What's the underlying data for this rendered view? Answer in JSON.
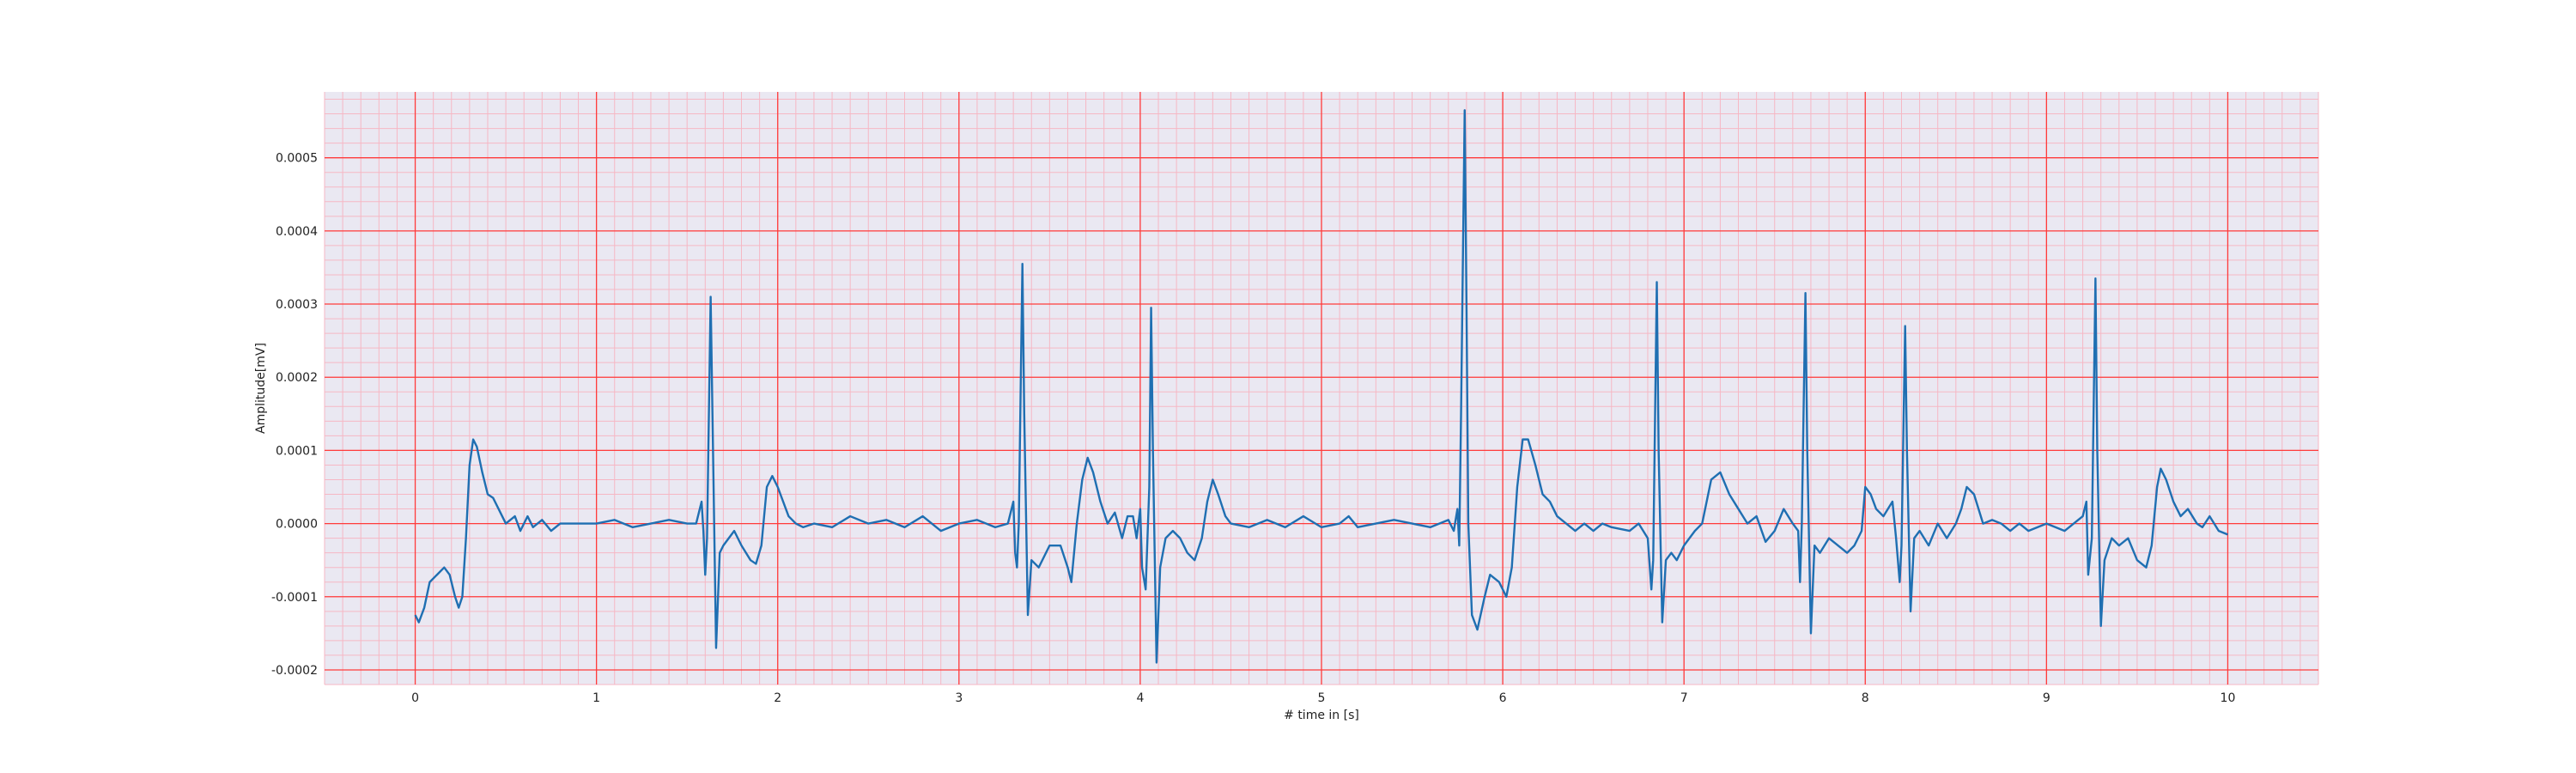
{
  "chart_data": {
    "type": "line",
    "title": "",
    "xlabel": "# time in [s]",
    "ylabel": "Amplitude[mV]",
    "xlim": [
      -0.5,
      10.5
    ],
    "ylim": [
      -0.00022,
      0.00059
    ],
    "x_ticks": [
      0,
      1,
      2,
      3,
      4,
      5,
      6,
      7,
      8,
      9,
      10
    ],
    "x_tick_labels": [
      "0",
      "1",
      "2",
      "3",
      "4",
      "5",
      "6",
      "7",
      "8",
      "9",
      "10"
    ],
    "y_ticks": [
      -0.0002,
      -0.0001,
      0.0,
      0.0001,
      0.0002,
      0.0003,
      0.0004,
      0.0005
    ],
    "y_tick_labels": [
      "-0.0002",
      "-0.0001",
      "0.0000",
      "0.0001",
      "0.0002",
      "0.0003",
      "0.0004",
      "0.0005"
    ],
    "grid": {
      "major": true,
      "minor": true,
      "major_x_step": 1,
      "major_y_step": 0.0001,
      "minor_x_step": 0.1,
      "minor_y_step": 2e-05,
      "major_color": "#ff3b3b",
      "minor_color": "#f6b7c4"
    },
    "colors": {
      "plot_background": "#eae8f2",
      "line": "#1f6fb2",
      "text": "#222222"
    },
    "series": [
      {
        "points": [
          [
            0.0,
            -0.000125
          ],
          [
            0.02,
            -0.000135
          ],
          [
            0.05,
            -0.000115
          ],
          [
            0.08,
            -8e-05
          ],
          [
            0.12,
            -7e-05
          ],
          [
            0.16,
            -6e-05
          ],
          [
            0.19,
            -7e-05
          ],
          [
            0.22,
            -0.0001
          ],
          [
            0.24,
            -0.000115
          ],
          [
            0.26,
            -0.0001
          ],
          [
            0.28,
            -2e-05
          ],
          [
            0.3,
            8e-05
          ],
          [
            0.32,
            0.000115
          ],
          [
            0.34,
            0.000105
          ],
          [
            0.37,
            7e-05
          ],
          [
            0.4,
            4e-05
          ],
          [
            0.43,
            3.5e-05
          ],
          [
            0.46,
            2e-05
          ],
          [
            0.5,
            0.0
          ],
          [
            0.55,
            1e-05
          ],
          [
            0.58,
            -1e-05
          ],
          [
            0.62,
            1e-05
          ],
          [
            0.65,
            -5e-06
          ],
          [
            0.7,
            5e-06
          ],
          [
            0.75,
            -1e-05
          ],
          [
            0.8,
            0.0
          ],
          [
            0.9,
            0.0
          ],
          [
            1.0,
            0.0
          ],
          [
            1.1,
            5e-06
          ],
          [
            1.2,
            -5e-06
          ],
          [
            1.3,
            0.0
          ],
          [
            1.4,
            5e-06
          ],
          [
            1.5,
            0.0
          ],
          [
            1.55,
            0.0
          ],
          [
            1.58,
            3e-05
          ],
          [
            1.59,
            -1e-05
          ],
          [
            1.6,
            -7e-05
          ],
          [
            1.61,
            -2e-05
          ],
          [
            1.63,
            0.00031
          ],
          [
            1.64,
            0.00015
          ],
          [
            1.66,
            -0.00017
          ],
          [
            1.68,
            -4e-05
          ],
          [
            1.7,
            -3e-05
          ],
          [
            1.73,
            -2e-05
          ],
          [
            1.76,
            -1e-05
          ],
          [
            1.8,
            -3e-05
          ],
          [
            1.85,
            -5e-05
          ],
          [
            1.88,
            -5.5e-05
          ],
          [
            1.91,
            -3e-05
          ],
          [
            1.94,
            5e-05
          ],
          [
            1.97,
            6.5e-05
          ],
          [
            2.0,
            5e-05
          ],
          [
            2.03,
            3e-05
          ],
          [
            2.06,
            1e-05
          ],
          [
            2.1,
            0.0
          ],
          [
            2.14,
            -5e-06
          ],
          [
            2.2,
            0.0
          ],
          [
            2.3,
            -5e-06
          ],
          [
            2.4,
            1e-05
          ],
          [
            2.5,
            0.0
          ],
          [
            2.6,
            5e-06
          ],
          [
            2.7,
            -5e-06
          ],
          [
            2.8,
            1e-05
          ],
          [
            2.9,
            -1e-05
          ],
          [
            3.0,
            0.0
          ],
          [
            3.1,
            5e-06
          ],
          [
            3.2,
            -5e-06
          ],
          [
            3.27,
            0.0
          ],
          [
            3.3,
            3e-05
          ],
          [
            3.31,
            -4e-05
          ],
          [
            3.32,
            -6e-05
          ],
          [
            3.33,
            0.0
          ],
          [
            3.35,
            0.000355
          ],
          [
            3.36,
            0.00015
          ],
          [
            3.38,
            -0.000125
          ],
          [
            3.4,
            -5e-05
          ],
          [
            3.44,
            -6e-05
          ],
          [
            3.5,
            -3e-05
          ],
          [
            3.56,
            -3e-05
          ],
          [
            3.6,
            -6e-05
          ],
          [
            3.62,
            -8e-05
          ],
          [
            3.65,
            0.0
          ],
          [
            3.68,
            6e-05
          ],
          [
            3.71,
            9e-05
          ],
          [
            3.74,
            7e-05
          ],
          [
            3.78,
            3e-05
          ],
          [
            3.82,
            0.0
          ],
          [
            3.86,
            1.5e-05
          ],
          [
            3.9,
            -2e-05
          ],
          [
            3.93,
            1e-05
          ],
          [
            3.96,
            1e-05
          ],
          [
            3.98,
            -2e-05
          ],
          [
            4.0,
            2e-05
          ],
          [
            4.01,
            -6e-05
          ],
          [
            4.03,
            -9e-05
          ],
          [
            4.05,
            5e-05
          ],
          [
            4.06,
            0.000295
          ],
          [
            4.07,
            0.0001
          ],
          [
            4.09,
            -0.00019
          ],
          [
            4.11,
            -6e-05
          ],
          [
            4.14,
            -2e-05
          ],
          [
            4.18,
            -1e-05
          ],
          [
            4.22,
            -2e-05
          ],
          [
            4.26,
            -4e-05
          ],
          [
            4.3,
            -5e-05
          ],
          [
            4.34,
            -2e-05
          ],
          [
            4.37,
            3e-05
          ],
          [
            4.4,
            6e-05
          ],
          [
            4.43,
            4e-05
          ],
          [
            4.47,
            1e-05
          ],
          [
            4.5,
            0.0
          ],
          [
            4.6,
            -5e-06
          ],
          [
            4.7,
            5e-06
          ],
          [
            4.8,
            -5e-06
          ],
          [
            4.9,
            1e-05
          ],
          [
            5.0,
            -5e-06
          ],
          [
            5.1,
            0.0
          ],
          [
            5.15,
            1e-05
          ],
          [
            5.2,
            -5e-06
          ],
          [
            5.3,
            0.0
          ],
          [
            5.4,
            5e-06
          ],
          [
            5.5,
            0.0
          ],
          [
            5.6,
            -5e-06
          ],
          [
            5.7,
            5e-06
          ],
          [
            5.73,
            -1e-05
          ],
          [
            5.75,
            2e-05
          ],
          [
            5.76,
            -3e-05
          ],
          [
            5.77,
            0.00015
          ],
          [
            5.79,
            0.000565
          ],
          [
            5.8,
            0.0003
          ],
          [
            5.81,
            0.0
          ],
          [
            5.83,
            -0.000125
          ],
          [
            5.86,
            -0.000145
          ],
          [
            5.9,
            -0.0001
          ],
          [
            5.93,
            -7e-05
          ],
          [
            5.98,
            -8e-05
          ],
          [
            6.02,
            -0.0001
          ],
          [
            6.05,
            -6e-05
          ],
          [
            6.08,
            5e-05
          ],
          [
            6.11,
            0.000115
          ],
          [
            6.14,
            0.000115
          ],
          [
            6.18,
            8e-05
          ],
          [
            6.22,
            4e-05
          ],
          [
            6.26,
            3e-05
          ],
          [
            6.3,
            1e-05
          ],
          [
            6.35,
            0.0
          ],
          [
            6.4,
            -1e-05
          ],
          [
            6.45,
            0.0
          ],
          [
            6.5,
            -1e-05
          ],
          [
            6.55,
            0.0
          ],
          [
            6.6,
            -5e-06
          ],
          [
            6.7,
            -1e-05
          ],
          [
            6.75,
            0.0
          ],
          [
            6.8,
            -2e-05
          ],
          [
            6.82,
            -9e-05
          ],
          [
            6.83,
            -5e-05
          ],
          [
            6.85,
            0.00033
          ],
          [
            6.86,
            0.0001
          ],
          [
            6.88,
            -0.000135
          ],
          [
            6.9,
            -5e-05
          ],
          [
            6.93,
            -4e-05
          ],
          [
            6.96,
            -5e-05
          ],
          [
            7.0,
            -3e-05
          ],
          [
            7.03,
            -2e-05
          ],
          [
            7.06,
            -1e-05
          ],
          [
            7.1,
            0.0
          ],
          [
            7.15,
            6e-05
          ],
          [
            7.2,
            7e-05
          ],
          [
            7.25,
            4e-05
          ],
          [
            7.3,
            2e-05
          ],
          [
            7.35,
            0.0
          ],
          [
            7.4,
            1e-05
          ],
          [
            7.45,
            -2.5e-05
          ],
          [
            7.5,
            -1e-05
          ],
          [
            7.55,
            2e-05
          ],
          [
            7.6,
            0.0
          ],
          [
            7.63,
            -1e-05
          ],
          [
            7.64,
            -8e-05
          ],
          [
            7.65,
            0.0
          ],
          [
            7.67,
            0.000315
          ],
          [
            7.68,
            0.0001
          ],
          [
            7.7,
            -0.00015
          ],
          [
            7.72,
            -3e-05
          ],
          [
            7.75,
            -4e-05
          ],
          [
            7.8,
            -2e-05
          ],
          [
            7.85,
            -3e-05
          ],
          [
            7.9,
            -4e-05
          ],
          [
            7.94,
            -3e-05
          ],
          [
            7.98,
            -1e-05
          ],
          [
            8.0,
            5e-05
          ],
          [
            8.03,
            4e-05
          ],
          [
            8.06,
            2e-05
          ],
          [
            8.1,
            1e-05
          ],
          [
            8.15,
            3e-05
          ],
          [
            8.17,
            -2e-05
          ],
          [
            8.19,
            -8e-05
          ],
          [
            8.2,
            -3e-05
          ],
          [
            8.22,
            0.00027
          ],
          [
            8.23,
            0.0001
          ],
          [
            8.25,
            -0.00012
          ],
          [
            8.27,
            -2e-05
          ],
          [
            8.3,
            -1e-05
          ],
          [
            8.35,
            -3e-05
          ],
          [
            8.4,
            0.0
          ],
          [
            8.45,
            -2e-05
          ],
          [
            8.5,
            0.0
          ],
          [
            8.53,
            2e-05
          ],
          [
            8.56,
            5e-05
          ],
          [
            8.6,
            4e-05
          ],
          [
            8.65,
            0.0
          ],
          [
            8.7,
            5e-06
          ],
          [
            8.75,
            0.0
          ],
          [
            8.8,
            -1e-05
          ],
          [
            8.85,
            0.0
          ],
          [
            8.9,
            -1e-05
          ],
          [
            9.0,
            0.0
          ],
          [
            9.1,
            -1e-05
          ],
          [
            9.15,
            0.0
          ],
          [
            9.2,
            1e-05
          ],
          [
            9.22,
            3e-05
          ],
          [
            9.23,
            -7e-05
          ],
          [
            9.25,
            -2e-05
          ],
          [
            9.27,
            0.000335
          ],
          [
            9.28,
            0.0001
          ],
          [
            9.3,
            -0.00014
          ],
          [
            9.32,
            -5e-05
          ],
          [
            9.36,
            -2e-05
          ],
          [
            9.4,
            -3e-05
          ],
          [
            9.45,
            -2e-05
          ],
          [
            9.5,
            -5e-05
          ],
          [
            9.55,
            -6e-05
          ],
          [
            9.58,
            -3e-05
          ],
          [
            9.61,
            5e-05
          ],
          [
            9.63,
            7.5e-05
          ],
          [
            9.66,
            6e-05
          ],
          [
            9.7,
            3e-05
          ],
          [
            9.74,
            1e-05
          ],
          [
            9.78,
            2e-05
          ],
          [
            9.83,
            0.0
          ],
          [
            9.86,
            -5e-06
          ],
          [
            9.9,
            1e-05
          ],
          [
            9.95,
            -1e-05
          ],
          [
            10.0,
            -1.5e-05
          ]
        ]
      }
    ]
  }
}
